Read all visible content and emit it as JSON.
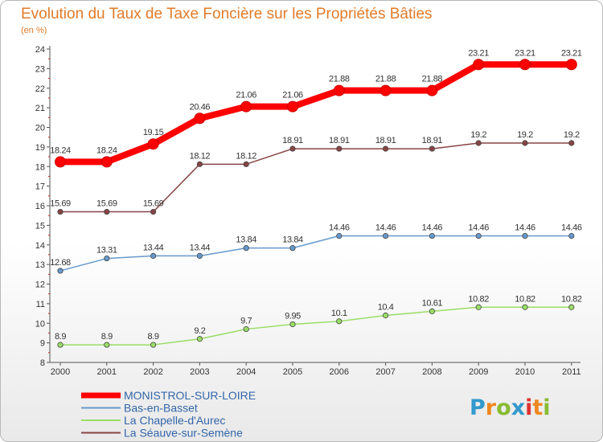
{
  "chart_data": {
    "type": "line",
    "title": "Evolution du Taux de Taxe Foncière sur les Propriétés Bâties",
    "unit_label": "(en %)",
    "xlabel": "",
    "ylabel": "",
    "categories": [
      "2000",
      "2001",
      "2002",
      "2003",
      "2004",
      "2005",
      "2006",
      "2007",
      "2008",
      "2009",
      "2010",
      "2011"
    ],
    "y_ticks": [
      8,
      9,
      10,
      11,
      12,
      13,
      14,
      15,
      16,
      17,
      18,
      19,
      20,
      21,
      22,
      23,
      24
    ],
    "ylim": [
      8,
      24
    ],
    "grid": false,
    "legend_position": "bottom-left",
    "series": [
      {
        "name": "MONISTROL-SUR-LOIRE",
        "color": "#ff0000",
        "values": [
          18.24,
          18.24,
          19.15,
          20.46,
          21.06,
          21.06,
          21.88,
          21.88,
          21.88,
          23.21,
          23.21,
          23.21
        ],
        "labels": [
          "18.24",
          "18.24",
          "19.15",
          "20.46",
          "21.06",
          "21.06",
          "21.88",
          "21.88",
          "21.88",
          "23.21",
          "23.21",
          "23.21"
        ]
      },
      {
        "name": "Bas-en-Basset",
        "color": "#6699cc",
        "values": [
          12.68,
          13.31,
          13.44,
          13.44,
          13.84,
          13.84,
          14.46,
          14.46,
          14.46,
          14.46,
          14.46,
          14.46
        ],
        "labels": [
          "12.68",
          "13.31",
          "13.44",
          "13.44",
          "13.84",
          "13.84",
          "14.46",
          "14.46",
          "14.46",
          "14.46",
          "14.46",
          "14.46"
        ]
      },
      {
        "name": "La Chapelle-d'Aurec",
        "color": "#99dd66",
        "values": [
          8.9,
          8.9,
          8.9,
          9.2,
          9.7,
          9.95,
          10.1,
          10.4,
          10.61,
          10.82,
          10.82,
          10.82
        ],
        "labels": [
          "8.9",
          "8.9",
          "8.9",
          "9.2",
          "9.7",
          "9.95",
          "10.1",
          "10.4",
          "10.61",
          "10.82",
          "10.82",
          "10.82"
        ]
      },
      {
        "name": "La Séauve-sur-Semène",
        "color": "#884444",
        "values": [
          15.69,
          15.69,
          15.69,
          18.12,
          18.12,
          18.91,
          18.91,
          18.91,
          18.91,
          19.2,
          19.2,
          19.2
        ],
        "labels": [
          "15.69",
          "15.69",
          "15.69",
          "18.12",
          "18.12",
          "18.91",
          "18.91",
          "18.91",
          "18.91",
          "19.2",
          "19.2",
          "19.2"
        ]
      }
    ]
  },
  "logo": {
    "text": "Proxiti",
    "letters": [
      "P",
      "r",
      "o",
      "x",
      "i",
      "t",
      "i"
    ],
    "colors": [
      "#3399cc",
      "#ee8822",
      "#88bb33",
      "#3399cc",
      "#dd3333",
      "#ee8822",
      "#88bb33"
    ]
  }
}
